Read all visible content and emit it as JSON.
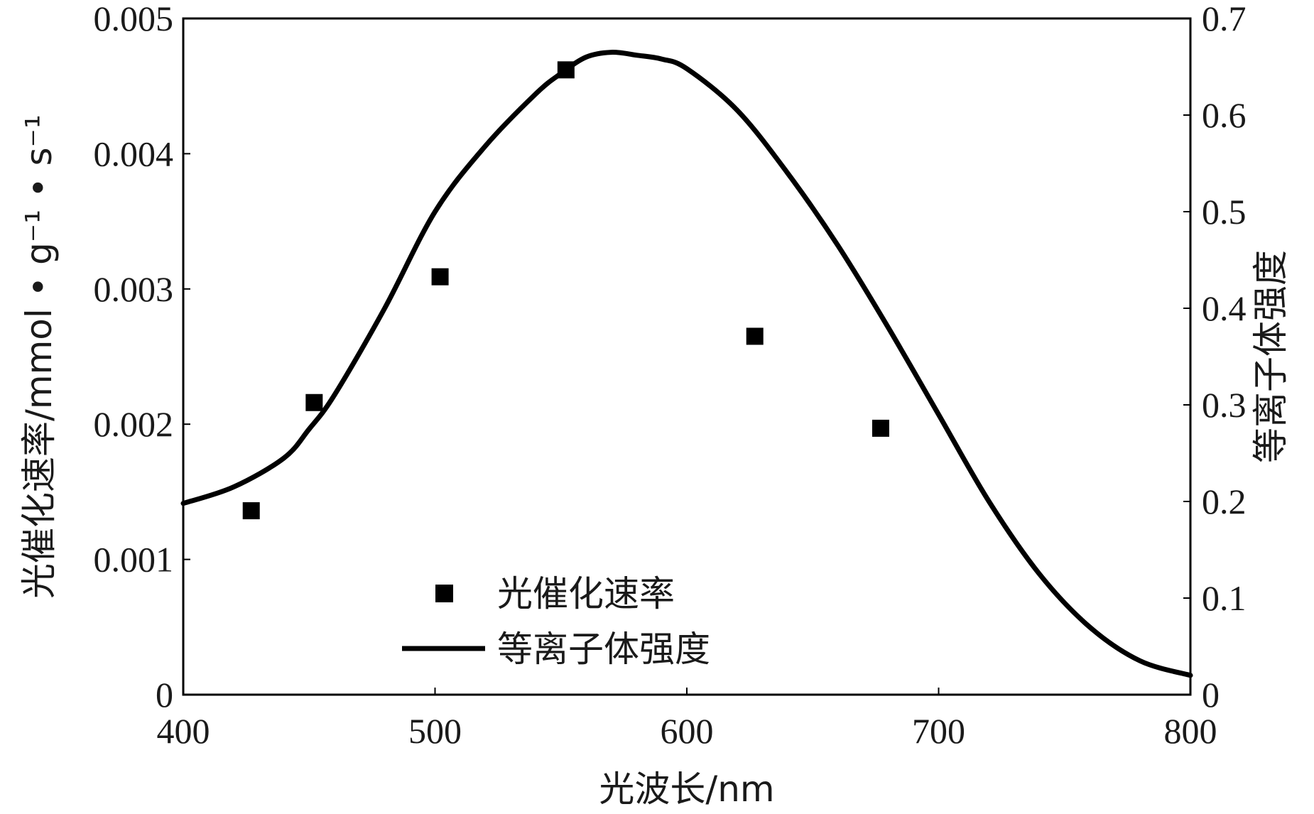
{
  "chart_data": {
    "type": "line",
    "x_axis": {
      "label": "光波长/nm",
      "range": [
        400,
        800
      ],
      "ticks": [
        "400",
        "500",
        "600",
        "700",
        "800"
      ]
    },
    "y_axis_left": {
      "label": "光催化速率/mmol • g⁻¹ • s⁻¹",
      "range": [
        0,
        0.005
      ],
      "ticks": [
        "0",
        "0.001",
        "0.002",
        "0.003",
        "0.004",
        "0.005"
      ]
    },
    "y_axis_right": {
      "label": "等离子体强度",
      "range": [
        0,
        0.7
      ],
      "ticks": [
        "0",
        "0.1",
        "0.2",
        "0.3",
        "0.4",
        "0.5",
        "0.6",
        "0.7"
      ]
    },
    "grid": false,
    "legend": {
      "position": "bottom-left",
      "entries": [
        "光催化速率",
        "等离子体强度"
      ]
    },
    "series": [
      {
        "name": "光催化速率",
        "type": "scatter",
        "marker": "square",
        "axis": "left",
        "color": "#000000",
        "x": [
          427,
          452,
          502,
          552,
          627,
          677
        ],
        "y": [
          0.00136,
          0.00216,
          0.00309,
          0.00462,
          0.00265,
          0.00197
        ]
      },
      {
        "name": "等离子体强度",
        "type": "line",
        "axis": "right",
        "color": "#000000",
        "x": [
          400,
          420,
          440,
          450,
          460,
          480,
          500,
          520,
          540,
          550,
          560,
          570,
          580,
          590,
          600,
          620,
          640,
          660,
          680,
          700,
          720,
          740,
          760,
          780,
          800
        ],
        "y": [
          0.198,
          0.215,
          0.245,
          0.275,
          0.31,
          0.4,
          0.5,
          0.568,
          0.622,
          0.643,
          0.66,
          0.665,
          0.662,
          0.658,
          0.648,
          0.605,
          0.54,
          0.465,
          0.38,
          0.29,
          0.2,
          0.125,
          0.07,
          0.035,
          0.02
        ]
      }
    ]
  }
}
